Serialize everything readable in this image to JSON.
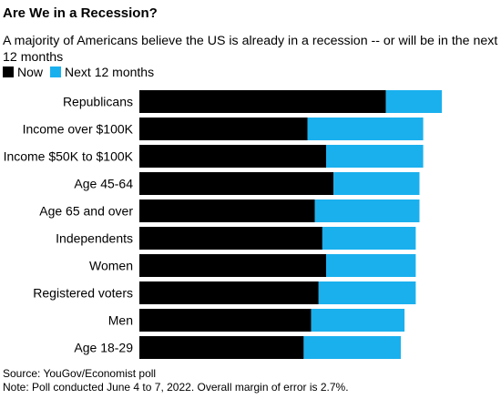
{
  "chart_data": {
    "type": "bar",
    "orientation": "horizontal",
    "stacked": true,
    "title": "Are We in a Recession?",
    "subtitle": "A majority of Americans believe the US is already in a recession -- or will be in the next 12 months",
    "categories": [
      "Republicans",
      "Income over $100K",
      "Income $50K to $100K",
      "Age 45-64",
      "Age 65 and over",
      "Independents",
      "Women",
      "Registered voters",
      "Men",
      "Age 18-29"
    ],
    "series": [
      {
        "name": "Now",
        "color": "#000000",
        "values": [
          66,
          45,
          50,
          52,
          47,
          49,
          50,
          48,
          46,
          44
        ]
      },
      {
        "name": "Next 12 months",
        "color": "#1ab0ee",
        "values": [
          15,
          31,
          26,
          23,
          28,
          25,
          24,
          26,
          25,
          26
        ]
      }
    ],
    "xlim": [
      0,
      100
    ],
    "grid": false,
    "legend": "top-left"
  },
  "footer": {
    "source": "Source: YouGov/Economist poll",
    "note": "Note: Poll conducted June 4 to 7, 2022. Overall margin of error is 2.7%."
  }
}
